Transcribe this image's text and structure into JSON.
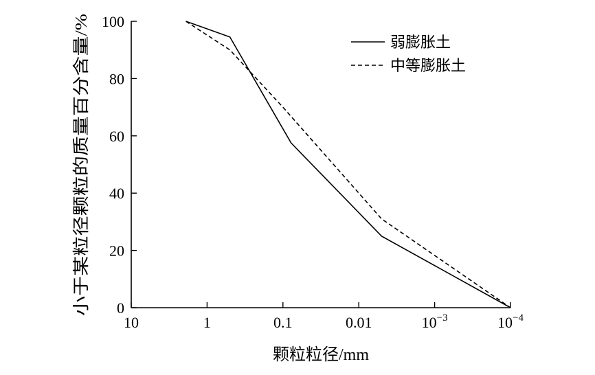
{
  "chart_data": {
    "type": "line",
    "xlabel": "颗粒粒径/mm",
    "ylabel": "小于某粒径颗粒的质量百分含量/%",
    "x_scale": "log-reversed",
    "xlim": [
      10,
      0.0001
    ],
    "ylim": [
      0,
      100
    ],
    "x_ticks": [
      {
        "value": 10,
        "label": "10"
      },
      {
        "value": 1,
        "label": "1"
      },
      {
        "value": 0.1,
        "label": "0.1"
      },
      {
        "value": 0.01,
        "label": "0.01"
      },
      {
        "value": 0.001,
        "base": "10",
        "exp": "−3"
      },
      {
        "value": 0.0001,
        "base": "10",
        "exp": "−4"
      }
    ],
    "y_ticks": [
      {
        "value": 0,
        "label": "0"
      },
      {
        "value": 20,
        "label": "20"
      },
      {
        "value": 40,
        "label": "40"
      },
      {
        "value": 60,
        "label": "60"
      },
      {
        "value": 80,
        "label": "80"
      },
      {
        "value": 100,
        "label": "100"
      }
    ],
    "legend_position": "top-right",
    "grid": false,
    "series": [
      {
        "name": "弱膨胀土",
        "style": "solid",
        "color": "#000000",
        "x": [
          1.9,
          0.5,
          0.078,
          0.005,
          0.0001
        ],
        "y": [
          100,
          94.5,
          57.5,
          25,
          0
        ]
      },
      {
        "name": "中等膨胀土",
        "style": "dashed",
        "color": "#000000",
        "x": [
          1.9,
          0.5,
          0.1,
          0.005,
          0.0001
        ],
        "y": [
          100,
          90,
          70,
          31,
          0
        ]
      }
    ]
  }
}
